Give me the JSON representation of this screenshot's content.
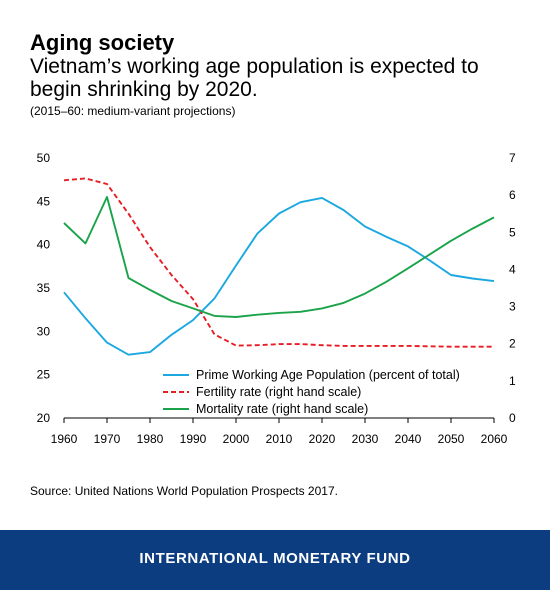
{
  "header": {
    "title": "Aging society",
    "subtitle": "Vietnam’s working age population is expected to begin shrinking by 2020.",
    "note": "(2015–60: medium-variant projections)"
  },
  "footer": {
    "source": "Source: United Nations World Population Prospects 2017.",
    "org": "INTERNATIONAL MONETARY FUND",
    "bg_color": "#0b3d80"
  },
  "chart_data": {
    "type": "line",
    "x": [
      1960,
      1965,
      1970,
      1975,
      1980,
      1985,
      1990,
      1995,
      2000,
      2005,
      2010,
      2015,
      2020,
      2025,
      2030,
      2035,
      2040,
      2045,
      2050,
      2055,
      2060
    ],
    "xticks": [
      1960,
      1970,
      1980,
      1990,
      2000,
      2010,
      2020,
      2030,
      2040,
      2050,
      2060
    ],
    "xlim": [
      1960,
      2060
    ],
    "ylim_left": [
      20,
      50
    ],
    "yticks_left": [
      20,
      25,
      30,
      35,
      40,
      45,
      50
    ],
    "ylim_right": [
      0,
      7
    ],
    "yticks_right": [
      0,
      1,
      2,
      3,
      4,
      5,
      6,
      7
    ],
    "grid": false,
    "legend_position": "bottom-right",
    "series": [
      {
        "name": "Prime Working Age Population (percent of total)",
        "axis": "left",
        "color": "#1ba8e0",
        "dash": "solid",
        "values": [
          34.5,
          31.5,
          28.7,
          27.3,
          27.6,
          29.6,
          31.3,
          33.8,
          37.6,
          41.3,
          43.6,
          44.9,
          45.4,
          44.0,
          42.1,
          40.9,
          39.8,
          38.2,
          36.5,
          36.1,
          35.8
        ]
      },
      {
        "name": "Fertility rate (right hand scale)",
        "axis": "right",
        "color": "#e61e25",
        "dash": "dashed",
        "values": [
          6.4,
          6.45,
          6.3,
          5.5,
          4.6,
          3.85,
          3.2,
          2.25,
          1.95,
          1.96,
          1.99,
          1.99,
          1.96,
          1.94,
          1.94,
          1.94,
          1.94,
          1.93,
          1.92,
          1.92,
          1.92
        ]
      },
      {
        "name": "Mortality rate (right hand scale)",
        "axis": "right",
        "color": "#1aa34a",
        "dash": "solid",
        "values": [
          5.25,
          4.7,
          5.95,
          3.77,
          3.45,
          3.15,
          2.95,
          2.75,
          2.72,
          2.78,
          2.83,
          2.86,
          2.95,
          3.1,
          3.35,
          3.67,
          4.03,
          4.4,
          4.77,
          5.1,
          5.4
        ]
      }
    ]
  }
}
